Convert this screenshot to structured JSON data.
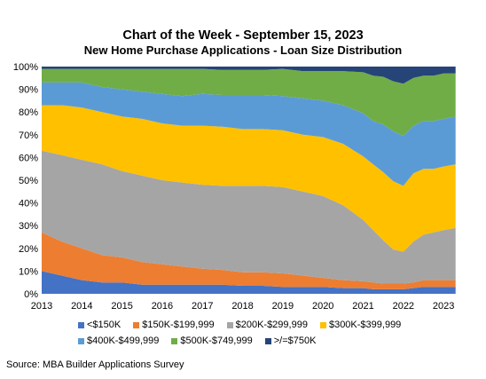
{
  "chart_data": {
    "type": "area",
    "stacked": true,
    "normalized": true,
    "title": "Chart of the Week - September 15, 2023",
    "subtitle": "New Home Purchase Applications - Loan Size Distribution",
    "xlabel": "",
    "ylabel": "",
    "xlim": [
      2013,
      2023.35
    ],
    "ylim": [
      0,
      100
    ],
    "x_ticks": [
      "2013",
      "2014",
      "2015",
      "2016",
      "2017",
      "2018",
      "2019",
      "2020",
      "2021",
      "2022",
      "2023"
    ],
    "y_ticks": [
      "0%",
      "10%",
      "20%",
      "30%",
      "40%",
      "50%",
      "60%",
      "70%",
      "80%",
      "90%",
      "100%"
    ],
    "grid": false,
    "legend_position": "bottom",
    "x": [
      2013.0,
      2013.5,
      2014.0,
      2014.5,
      2015.0,
      2015.5,
      2016.0,
      2016.5,
      2017.0,
      2017.5,
      2018.0,
      2018.5,
      2019.0,
      2019.5,
      2020.0,
      2020.5,
      2021.0,
      2021.25,
      2021.5,
      2021.75,
      2022.0,
      2022.25,
      2022.5,
      2022.75,
      2023.0,
      2023.3
    ],
    "series": [
      {
        "name": "<$150K",
        "color": "#4472c4",
        "values": [
          10,
          8,
          6,
          5,
          5,
          4,
          4,
          4,
          4,
          4,
          3.5,
          3.5,
          3,
          3,
          3,
          2.5,
          2.5,
          2,
          2,
          2,
          2,
          2.5,
          3,
          3,
          3,
          3
        ]
      },
      {
        "name": "$150K-$199,999",
        "color": "#ed7d31",
        "values": [
          17,
          15,
          14,
          12,
          11,
          10,
          9,
          8,
          7,
          6.5,
          6,
          6,
          6,
          5,
          4,
          3.5,
          3,
          3,
          2.5,
          2.5,
          2.5,
          2.5,
          3,
          3,
          3,
          3
        ]
      },
      {
        "name": "$200K-$299,999",
        "color": "#a5a5a5",
        "values": [
          36,
          38,
          39,
          40,
          38,
          38,
          37,
          37,
          37,
          37,
          38,
          38,
          38,
          37,
          36,
          33,
          27,
          23,
          19,
          15,
          14,
          18,
          20,
          21,
          22,
          23
        ]
      },
      {
        "name": "$300K-$399,999",
        "color": "#ffc000",
        "values": [
          20,
          22,
          23,
          23,
          24,
          25,
          25,
          25,
          26,
          26,
          25,
          25,
          25,
          25,
          26,
          27,
          28,
          29,
          30,
          30,
          29,
          30,
          29,
          28,
          28,
          28
        ]
      },
      {
        "name": "$400K-$499,999",
        "color": "#5b9bd5",
        "values": [
          10,
          10,
          11,
          11,
          12,
          12,
          13,
          13,
          14,
          14,
          15,
          15,
          15,
          16,
          16,
          17,
          19,
          19,
          21,
          22,
          22,
          21,
          21,
          21,
          21,
          21
        ]
      },
      {
        "name": "$500K-$749,999",
        "color": "#70ad47",
        "values": [
          6,
          6,
          6,
          8,
          9,
          10,
          11,
          12,
          11,
          11,
          11,
          11,
          12,
          12,
          13,
          15,
          18,
          20,
          21,
          22,
          23,
          21,
          20,
          20,
          20,
          19
        ]
      },
      {
        "name": ">/=$750K",
        "color": "#264478",
        "values": [
          1,
          1,
          1,
          1,
          1,
          1,
          1,
          1,
          1,
          1.5,
          1.5,
          1.5,
          1,
          2,
          2,
          2,
          2.5,
          4,
          4.5,
          6.5,
          7.5,
          5,
          4,
          4,
          3,
          3
        ]
      }
    ]
  },
  "footer": {
    "source": "Source: MBA Builder Applications Survey"
  }
}
